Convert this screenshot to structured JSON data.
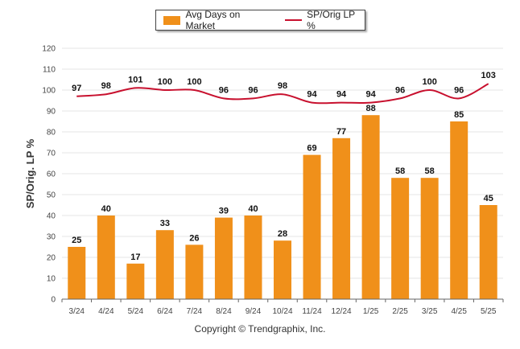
{
  "legend": {
    "bar_label": "Avg Days on Market",
    "line_label": "SP/Orig LP %"
  },
  "footer": {
    "copyright": "Copyright © Trendgraphix, Inc."
  },
  "colors": {
    "bar": "#F0901A",
    "line": "#C8102E",
    "grid": "#e6e6e6",
    "axis": "#666666"
  },
  "chart_data": {
    "type": "bar",
    "categories": [
      "3/24",
      "4/24",
      "5/24",
      "6/24",
      "7/24",
      "8/24",
      "9/24",
      "10/24",
      "11/24",
      "12/24",
      "1/25",
      "2/25",
      "3/25",
      "4/25",
      "5/25"
    ],
    "series": [
      {
        "name": "Avg Days on Market",
        "type": "bar",
        "values": [
          25,
          40,
          17,
          33,
          26,
          39,
          40,
          28,
          69,
          77,
          88,
          58,
          58,
          85,
          45
        ]
      },
      {
        "name": "SP/Orig LP %",
        "type": "line",
        "values": [
          97,
          98,
          101,
          100,
          100,
          96,
          96,
          98,
          94,
          94,
          94,
          96,
          100,
          96,
          103
        ]
      }
    ],
    "ylabel": "SP/Orig. LP %",
    "xlabel": "",
    "ylim": [
      0,
      120
    ],
    "yticks": [
      0,
      10,
      20,
      30,
      40,
      50,
      60,
      70,
      80,
      90,
      100,
      110,
      120
    ],
    "grid": true,
    "legend_position": "top-center"
  }
}
